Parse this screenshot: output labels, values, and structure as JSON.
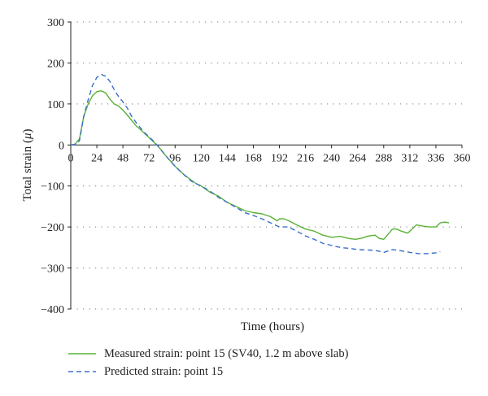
{
  "chart_data": {
    "type": "line",
    "xlabel": "Time (hours)",
    "ylabel": "Total strain (",
    "ylabel_symbol": "μ",
    "ylabel_close": ")",
    "xlim": [
      0,
      360
    ],
    "ylim": [
      -400,
      300
    ],
    "xticks": [
      0,
      24,
      48,
      72,
      96,
      120,
      144,
      168,
      192,
      216,
      240,
      264,
      288,
      312,
      336,
      360
    ],
    "yticks": [
      -400,
      -300,
      -200,
      -100,
      0,
      100,
      200,
      300
    ],
    "grid": "horizontal dotted",
    "legend": "bottom",
    "series": [
      {
        "name": "Measured strain: point 15 (SV40, 1.2 m above slab)",
        "color": "#58b234",
        "style": "solid",
        "points": [
          [
            0,
            0
          ],
          [
            4,
            2
          ],
          [
            8,
            15
          ],
          [
            12,
            70
          ],
          [
            16,
            100
          ],
          [
            20,
            120
          ],
          [
            24,
            130
          ],
          [
            28,
            132
          ],
          [
            32,
            127
          ],
          [
            36,
            112
          ],
          [
            40,
            100
          ],
          [
            44,
            95
          ],
          [
            48,
            85
          ],
          [
            52,
            73
          ],
          [
            56,
            60
          ],
          [
            60,
            47
          ],
          [
            64,
            38
          ],
          [
            68,
            28
          ],
          [
            72,
            18
          ],
          [
            76,
            8
          ],
          [
            80,
            -2
          ],
          [
            84,
            -15
          ],
          [
            88,
            -28
          ],
          [
            92,
            -40
          ],
          [
            96,
            -52
          ],
          [
            100,
            -62
          ],
          [
            104,
            -72
          ],
          [
            108,
            -80
          ],
          [
            112,
            -88
          ],
          [
            116,
            -95
          ],
          [
            120,
            -100
          ],
          [
            128,
            -115
          ],
          [
            136,
            -125
          ],
          [
            144,
            -140
          ],
          [
            152,
            -150
          ],
          [
            160,
            -160
          ],
          [
            168,
            -165
          ],
          [
            176,
            -168
          ],
          [
            184,
            -175
          ],
          [
            190,
            -185
          ],
          [
            192,
            -180
          ],
          [
            196,
            -180
          ],
          [
            200,
            -184
          ],
          [
            208,
            -195
          ],
          [
            216,
            -205
          ],
          [
            224,
            -210
          ],
          [
            232,
            -220
          ],
          [
            240,
            -225
          ],
          [
            248,
            -223
          ],
          [
            256,
            -228
          ],
          [
            262,
            -230
          ],
          [
            268,
            -227
          ],
          [
            274,
            -222
          ],
          [
            280,
            -220
          ],
          [
            284,
            -228
          ],
          [
            288,
            -230
          ],
          [
            292,
            -218
          ],
          [
            296,
            -205
          ],
          [
            300,
            -205
          ],
          [
            304,
            -210
          ],
          [
            310,
            -215
          ],
          [
            314,
            -205
          ],
          [
            318,
            -195
          ],
          [
            324,
            -198
          ],
          [
            330,
            -200
          ],
          [
            336,
            -200
          ],
          [
            340,
            -190
          ],
          [
            344,
            -188
          ],
          [
            348,
            -190
          ]
        ]
      },
      {
        "name": "Predicted strain: point 15",
        "color": "#3a6fc9",
        "style": "dashed",
        "points": [
          [
            0,
            0
          ],
          [
            4,
            2
          ],
          [
            8,
            10
          ],
          [
            12,
            70
          ],
          [
            16,
            110
          ],
          [
            20,
            145
          ],
          [
            24,
            165
          ],
          [
            28,
            172
          ],
          [
            32,
            168
          ],
          [
            36,
            155
          ],
          [
            40,
            135
          ],
          [
            44,
            118
          ],
          [
            48,
            105
          ],
          [
            52,
            90
          ],
          [
            56,
            70
          ],
          [
            60,
            55
          ],
          [
            64,
            42
          ],
          [
            68,
            30
          ],
          [
            72,
            20
          ],
          [
            76,
            10
          ],
          [
            80,
            -2
          ],
          [
            84,
            -15
          ],
          [
            88,
            -28
          ],
          [
            92,
            -40
          ],
          [
            96,
            -52
          ],
          [
            100,
            -62
          ],
          [
            104,
            -72
          ],
          [
            108,
            -82
          ],
          [
            112,
            -90
          ],
          [
            120,
            -100
          ],
          [
            128,
            -112
          ],
          [
            136,
            -128
          ],
          [
            144,
            -140
          ],
          [
            152,
            -152
          ],
          [
            160,
            -165
          ],
          [
            168,
            -172
          ],
          [
            176,
            -180
          ],
          [
            184,
            -190
          ],
          [
            192,
            -200
          ],
          [
            200,
            -200
          ],
          [
            208,
            -210
          ],
          [
            216,
            -222
          ],
          [
            224,
            -230
          ],
          [
            232,
            -240
          ],
          [
            240,
            -245
          ],
          [
            248,
            -250
          ],
          [
            256,
            -252
          ],
          [
            264,
            -255
          ],
          [
            272,
            -256
          ],
          [
            280,
            -257
          ],
          [
            288,
            -262
          ],
          [
            296,
            -255
          ],
          [
            304,
            -258
          ],
          [
            312,
            -262
          ],
          [
            320,
            -265
          ],
          [
            328,
            -265
          ],
          [
            336,
            -263
          ],
          [
            340,
            -260
          ]
        ]
      }
    ]
  }
}
